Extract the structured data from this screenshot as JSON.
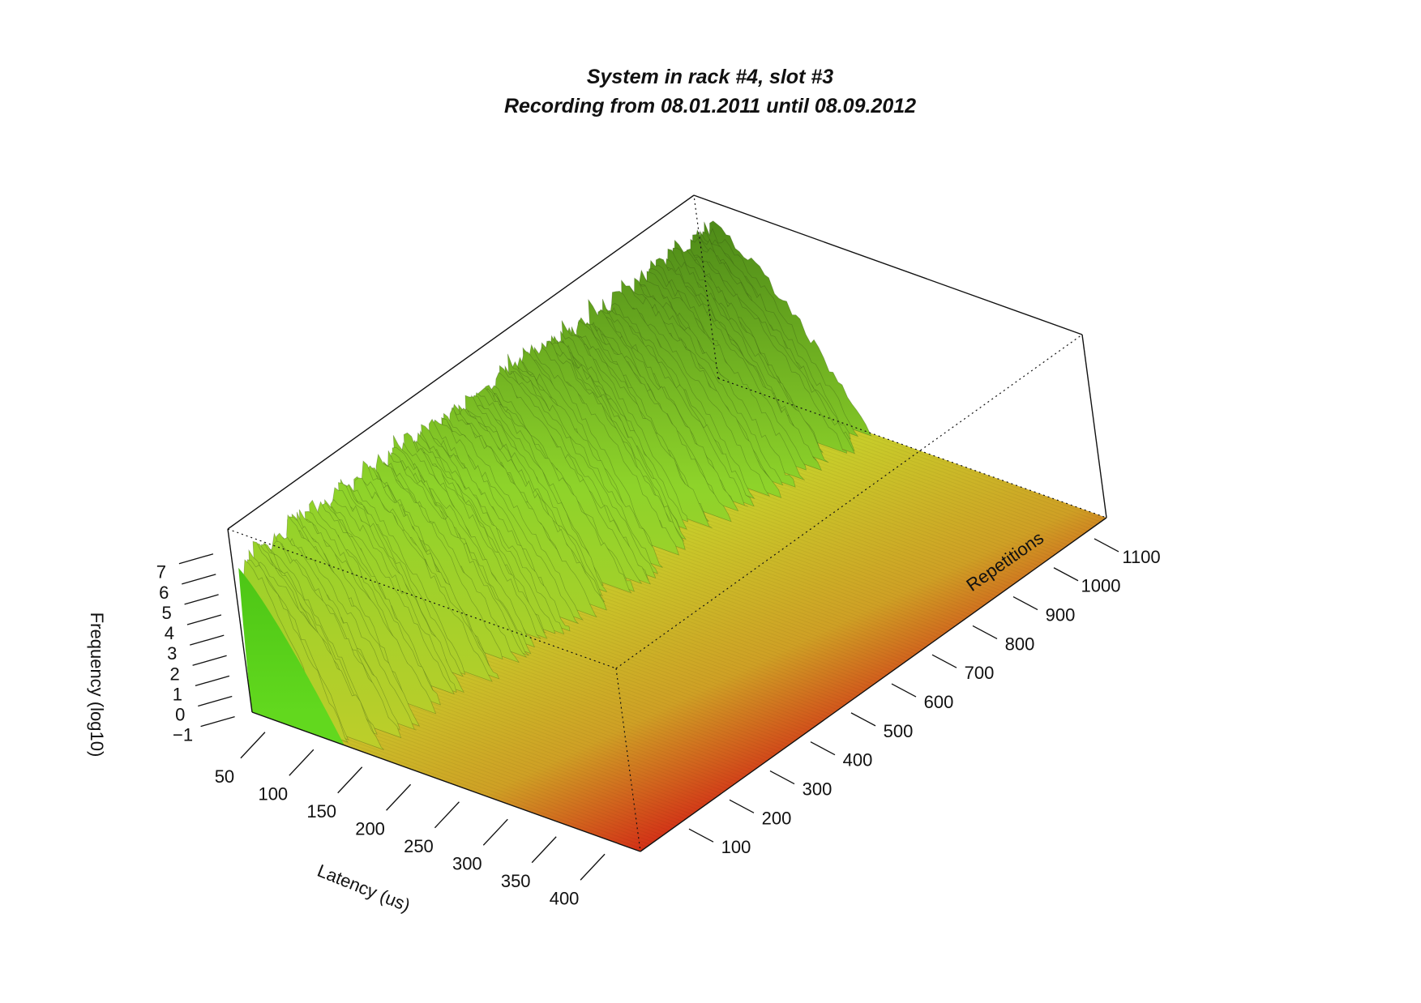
{
  "chart_data": {
    "type": "surface",
    "title": "System in rack #4, slot #3",
    "subtitle": "Recording from 08.01.2011 until 08.09.2012",
    "xlabel": "Latency (us)",
    "ylabel": "Repetitions",
    "zlabel": "Frequency (log10)",
    "x_ticks": [
      "50",
      "100",
      "150",
      "200",
      "250",
      "300",
      "350",
      "400"
    ],
    "y_ticks": [
      "100",
      "200",
      "300",
      "400",
      "500",
      "600",
      "700",
      "800",
      "900",
      "1000",
      "1100"
    ],
    "z_ticks": [
      "−1",
      "0",
      "1",
      "2",
      "3",
      "4",
      "5",
      "6",
      "7"
    ],
    "xlim": [
      25,
      425
    ],
    "ylim": [
      0,
      1150
    ],
    "zlim": [
      -1,
      8
    ],
    "grid": false,
    "colors": {
      "high": "#56d61a",
      "mid": "#c8cc2a",
      "low": "#d42a16",
      "ridge_dark": "#2f4a12"
    }
  }
}
